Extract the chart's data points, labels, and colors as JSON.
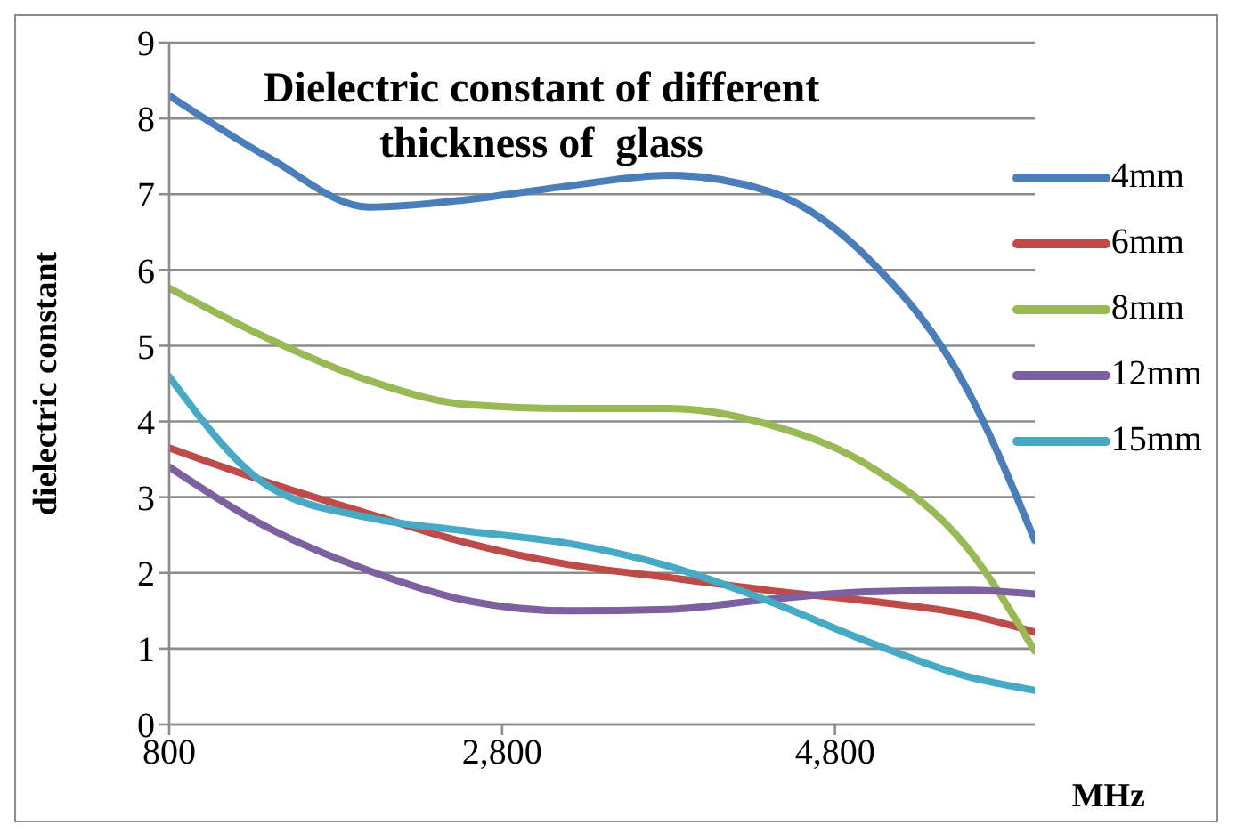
{
  "chart_data": {
    "type": "line",
    "title": "Dielectric constant of different thickness of  glass",
    "xlabel": "MHz",
    "ylabel": "dielectric constant",
    "x": [
      800,
      1400,
      2000,
      2600,
      3200,
      3800,
      4400,
      5000,
      5600,
      6000
    ],
    "series": [
      {
        "name": "4mm",
        "color": "#4a7ebb",
        "values": [
          8.3,
          7.48,
          6.83,
          6.93,
          7.11,
          7.25,
          7.04,
          6.15,
          4.4,
          2.43
        ]
      },
      {
        "name": "6mm",
        "color": "#be4b48",
        "values": [
          3.65,
          3.19,
          2.78,
          2.39,
          2.11,
          1.94,
          1.77,
          1.63,
          1.45,
          1.22
        ]
      },
      {
        "name": "8mm",
        "color": "#98b954",
        "values": [
          5.76,
          5.09,
          4.54,
          4.22,
          4.17,
          4.17,
          3.96,
          3.42,
          2.32,
          0.97
        ]
      },
      {
        "name": "12mm",
        "color": "#7d60a0",
        "values": [
          3.4,
          2.59,
          2.03,
          1.63,
          1.5,
          1.52,
          1.65,
          1.75,
          1.77,
          1.72
        ]
      },
      {
        "name": "15mm",
        "color": "#46aac5",
        "values": [
          4.59,
          3.14,
          2.73,
          2.55,
          2.39,
          2.09,
          1.63,
          1.09,
          0.63,
          0.45
        ]
      }
    ],
    "xlim": [
      800,
      6000
    ],
    "xticks": [
      {
        "value": 800,
        "label": "800"
      },
      {
        "value": 2800,
        "label": "2,800"
      },
      {
        "value": 4800,
        "label": "4,800"
      }
    ],
    "ylim": [
      0,
      9
    ],
    "yticks": [
      0,
      1,
      2,
      3,
      4,
      5,
      6,
      7,
      8,
      9
    ],
    "grid": "y",
    "legend": "right",
    "marker": "none",
    "line_style": "solid"
  }
}
